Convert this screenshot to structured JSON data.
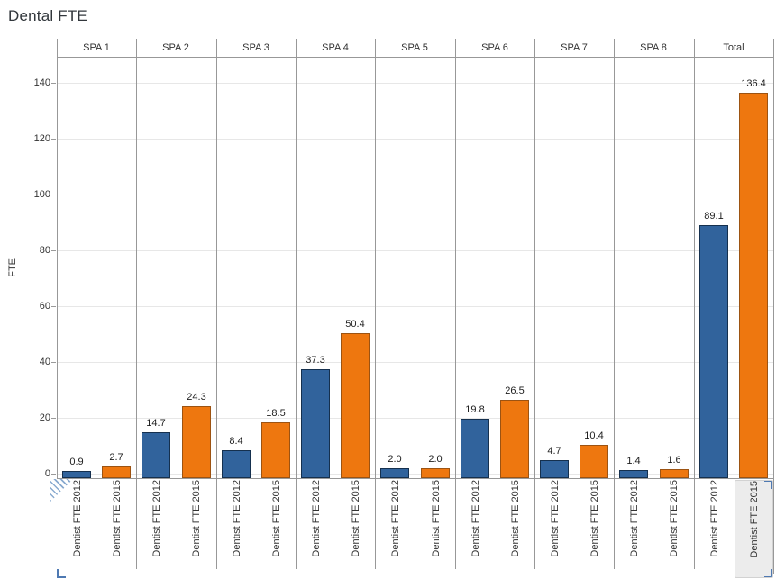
{
  "chart_data": {
    "type": "bar",
    "title": "Dental FTE",
    "ylabel": "FTE",
    "ylim": [
      -2,
      149
    ],
    "yticks": [
      0,
      20,
      40,
      60,
      80,
      100,
      120,
      140
    ],
    "grid": true,
    "legend": "none",
    "categories": [
      "SPA 1",
      "SPA 2",
      "SPA 3",
      "SPA 4",
      "SPA 5",
      "SPA 6",
      "SPA 7",
      "SPA 8",
      "Total"
    ],
    "series": [
      {
        "name": "Dentist FTE 2012",
        "color": "#31639c",
        "border": "#15304e",
        "values": [
          0.9,
          14.7,
          8.4,
          37.3,
          2.0,
          19.8,
          4.7,
          1.4,
          89.1
        ]
      },
      {
        "name": "Dentist FTE 2015",
        "color": "#ee770f",
        "border": "#9c5312",
        "values": [
          2.7,
          24.3,
          18.5,
          50.4,
          2.0,
          26.5,
          10.4,
          1.6,
          136.4
        ]
      }
    ],
    "bar_labels": [
      "0.9",
      "14.7",
      "8.4",
      "37.3",
      "2.0",
      "19.8",
      "4.7",
      "1.4",
      "89.1",
      "2.7",
      "24.3",
      "18.5",
      "50.4",
      "2.0",
      "26.5",
      "10.4",
      "1.6",
      "136.4"
    ]
  },
  "colors": {
    "bar_2012": "#31639c",
    "bar_2012_border": "#15304e",
    "bar_2015": "#ee770f",
    "bar_2015_border": "#9c5312",
    "gridline": "#e7e7e7",
    "pane_line": "#989898",
    "text": "#333333",
    "highlight_bg": "#ececec",
    "selection_accent": "#4e79b2"
  },
  "icons": {
    "clipped_axis_indicator": "hatched-triangle",
    "selection_corner": "blue-corner-grip"
  },
  "selection": {
    "highlighted_category": "Total",
    "highlighted_series": "Dentist FTE 2015"
  }
}
